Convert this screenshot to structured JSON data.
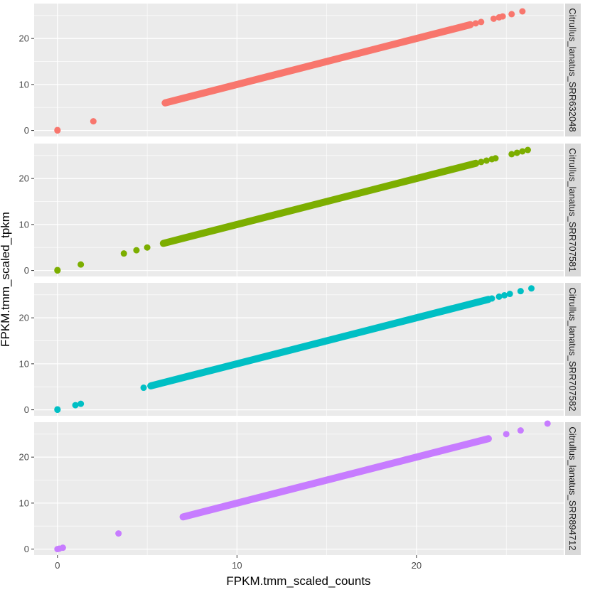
{
  "chart_data": {
    "type": "scatter",
    "xlabel": "FPKM.tmm_scaled_counts",
    "ylabel": "FPKM.tmm_scaled_tpkm",
    "xlim": [
      -1.3,
      28.2
    ],
    "ylim": [
      -1.3,
      27.6
    ],
    "x_ticks": [
      0,
      10,
      20
    ],
    "y_ticks": [
      0,
      10,
      20
    ],
    "grid": true,
    "panel_background": "#EBEBEB",
    "strip_background": "#D9D9D9",
    "panels": [
      {
        "strip_label": "Citrullus_lanatus_SRR632048",
        "color": "#F8766D",
        "points": [
          [
            0,
            0
          ],
          [
            0,
            0.1
          ],
          [
            2.0,
            2.0
          ],
          [
            23.3,
            23.3
          ],
          [
            23.6,
            23.6
          ],
          [
            24.3,
            24.3
          ],
          [
            24.6,
            24.6
          ],
          [
            24.8,
            24.8
          ],
          [
            25.3,
            25.3
          ],
          [
            25.9,
            25.9
          ]
        ],
        "segment": [
          6.0,
          23.0
        ]
      },
      {
        "strip_label": "Citrullus_lanatus_SRR707581",
        "color": "#7CAE00",
        "points": [
          [
            0,
            0
          ],
          [
            0,
            0.1
          ],
          [
            1.3,
            1.3
          ],
          [
            3.7,
            3.7
          ],
          [
            4.4,
            4.4
          ],
          [
            5.0,
            5.0
          ],
          [
            23.6,
            23.6
          ],
          [
            23.9,
            23.9
          ],
          [
            24.2,
            24.2
          ],
          [
            24.4,
            24.4
          ],
          [
            25.3,
            25.3
          ],
          [
            25.6,
            25.6
          ],
          [
            25.9,
            25.9
          ],
          [
            26.2,
            26.2
          ]
        ],
        "segment": [
          5.9,
          23.3
        ]
      },
      {
        "strip_label": "Citrullus_lanatus_SRR707582",
        "color": "#00BFC4",
        "points": [
          [
            0,
            0
          ],
          [
            0,
            0.1
          ],
          [
            1.0,
            1.0
          ],
          [
            1.3,
            1.3
          ],
          [
            4.8,
            4.8
          ],
          [
            24.2,
            24.2
          ],
          [
            24.6,
            24.6
          ],
          [
            24.9,
            24.9
          ],
          [
            25.2,
            25.2
          ],
          [
            25.8,
            25.8
          ],
          [
            26.4,
            26.4
          ]
        ],
        "segment": [
          5.2,
          24.0
        ]
      },
      {
        "strip_label": "Citrullus_lanatus_SRR894712",
        "color": "#C77CFF",
        "points": [
          [
            0,
            0
          ],
          [
            0.1,
            0.1
          ],
          [
            0.3,
            0.3
          ],
          [
            3.4,
            3.4
          ],
          [
            25.0,
            25.0
          ],
          [
            25.8,
            25.8
          ],
          [
            27.3,
            27.3
          ]
        ],
        "segment": [
          7.0,
          24.0
        ]
      }
    ]
  }
}
